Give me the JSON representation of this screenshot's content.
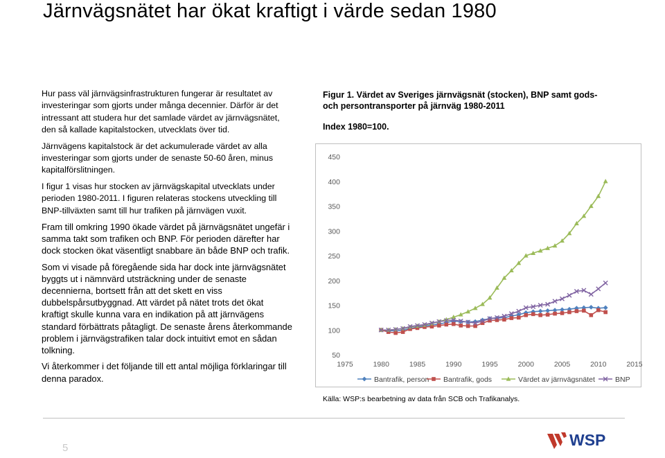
{
  "page": {
    "title": "Järnvägsnätet har ökat kraftigt i värde sedan 1980",
    "page_number": "5",
    "logo_text": "WSP"
  },
  "body_text": {
    "p1": "Hur pass väl järnvägsinfrastrukturen fungerar är resultatet av investeringar som gjorts under många decennier. Därför är det intressant att studera hur det samlade värdet av järnvägsnätet, den så kallade kapitalstocken, utvecklats över tid.",
    "p2": "Järnvägens kapitalstock är det ackumulerade värdet av alla investeringar som gjorts under de senaste 50-60 åren, minus kapitalförslitningen.",
    "p3": "I figur 1 visas hur stocken av järnvägskapital utvecklats under perioden 1980-2011. I figuren relateras stockens utveckling till BNP-tillväxten samt till hur trafiken på järnvägen vuxit.",
    "p4": "Fram till omkring 1990 ökade värdet på järnvägsnätet ungefär i samma takt som trafiken och BNP. För perioden därefter har dock stocken ökat väsentligt snabbare än både BNP och trafik.",
    "p5": "Som vi visade på föregående sida har dock inte järnvägsnätet byggts ut i nämnvärd utsträckning under de senaste decennierna, bortsett från att det skett en viss dubbelspårsutbyggnad. Att värdet på nätet trots det ökat kraftigt skulle kunna vara en indikation på att järnvägens standard förbättrats påtagligt. De senaste årens återkommande problem i järnvägstrafiken talar dock intuitivt emot en sådan tolkning.",
    "p6": "Vi återkommer i det följande till ett antal möjliga förklaringar till denna paradox."
  },
  "figure": {
    "caption": "Figur 1. Värdet av Sveriges järnvägsnät (stocken), BNP samt gods- och persontransporter på järnväg 1980-2011",
    "index_note": "Index 1980=100.",
    "source": "Källa: WSP:s bearbetning av data från SCB och Trafikanalys."
  },
  "chart_data": {
    "type": "line",
    "title": "",
    "xlabel": "",
    "ylabel": "",
    "xlim": [
      1975,
      2015
    ],
    "ylim": [
      50,
      450
    ],
    "x_ticks": [
      1975,
      1980,
      1985,
      1990,
      1995,
      2000,
      2005,
      2010,
      2015
    ],
    "y_ticks": [
      50,
      100,
      150,
      200,
      250,
      300,
      350,
      400,
      450
    ],
    "grid": false,
    "legend_position": "bottom",
    "x": [
      1980,
      1981,
      1982,
      1983,
      1984,
      1985,
      1986,
      1987,
      1988,
      1989,
      1990,
      1991,
      1992,
      1993,
      1994,
      1995,
      1996,
      1997,
      1998,
      1999,
      2000,
      2001,
      2002,
      2003,
      2004,
      2005,
      2006,
      2007,
      2008,
      2009,
      2010,
      2011
    ],
    "series": [
      {
        "name": "Bantrafik, person",
        "color": "#4f81bd",
        "marker": "diamond",
        "values": [
          100,
          99,
          98,
          100,
          103,
          106,
          108,
          110,
          112,
          115,
          118,
          117,
          116,
          117,
          120,
          123,
          124,
          125,
          128,
          131,
          135,
          137,
          138,
          139,
          140,
          141,
          142,
          144,
          145,
          146,
          144,
          145
        ]
      },
      {
        "name": "Bantrafik, gods",
        "color": "#c0504d",
        "marker": "square",
        "values": [
          100,
          96,
          94,
          96,
          102,
          104,
          106,
          107,
          109,
          111,
          112,
          109,
          108,
          108,
          114,
          119,
          120,
          121,
          124,
          125,
          130,
          132,
          130,
          131,
          133,
          134,
          136,
          138,
          139,
          130,
          140,
          136
        ]
      },
      {
        "name": "Värdet av järnvägsnätet",
        "color": "#9bbb59",
        "marker": "triangle",
        "values": [
          100,
          100,
          101,
          103,
          106,
          108,
          110,
          113,
          117,
          121,
          126,
          131,
          137,
          144,
          152,
          165,
          185,
          205,
          220,
          235,
          250,
          255,
          260,
          265,
          270,
          280,
          295,
          315,
          330,
          350,
          370,
          400
        ]
      },
      {
        "name": "BNP",
        "color": "#8064a2",
        "marker": "x",
        "values": [
          100,
          100,
          101,
          103,
          107,
          109,
          111,
          114,
          117,
          119,
          120,
          118,
          116,
          114,
          118,
          123,
          125,
          128,
          133,
          138,
          145,
          147,
          150,
          152,
          158,
          163,
          170,
          178,
          180,
          172,
          183,
          195
        ]
      }
    ]
  }
}
